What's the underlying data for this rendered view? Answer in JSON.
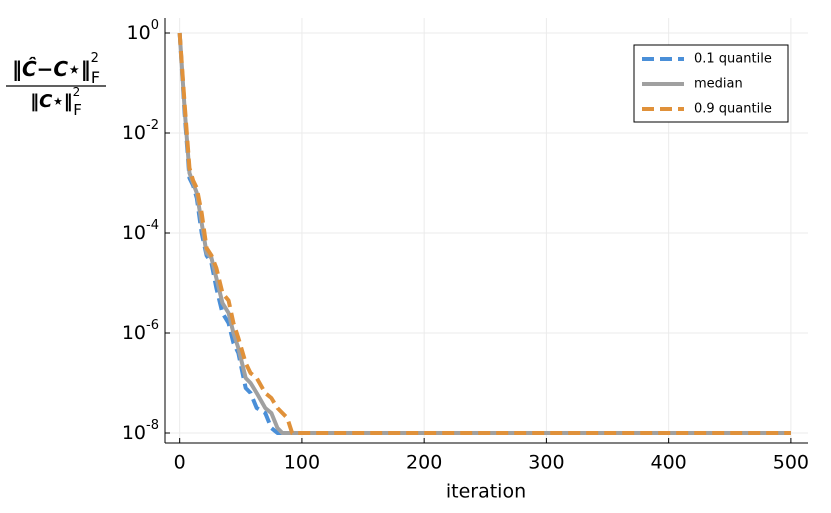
{
  "chart_data": {
    "type": "line",
    "x_label": "iteration",
    "y_label": {
      "numerator": "‖Ĉ−C⋆‖",
      "denominator": "‖C⋆‖",
      "superscript": "2",
      "subscript": "F"
    },
    "x": [
      0,
      4,
      8,
      11,
      14,
      18,
      22,
      26,
      30,
      35,
      40,
      44,
      48,
      54,
      58,
      63,
      70,
      75,
      80,
      84,
      88,
      92,
      500
    ],
    "series": [
      {
        "name": "0.1 quantile",
        "color": "#4a8fd8",
        "dash": true,
        "values": [
          1,
          0.0251,
          0.00126,
          0.000891,
          0.000501,
          0.0001,
          3.55e-05,
          2.51e-05,
          7.94e-06,
          2.51e-06,
          1.58e-06,
          6.31e-07,
          3.98e-07,
          7.94e-08,
          6.31e-08,
          3.16e-08,
          2.51e-08,
          1.26e-08,
          1e-08,
          1e-08,
          1e-08,
          1e-08,
          1e-08
        ]
      },
      {
        "name": "median",
        "color": "#a0a0a0",
        "dash": false,
        "values": [
          1,
          0.0316,
          0.00158,
          0.001,
          0.000631,
          0.000158,
          3.98e-05,
          3.16e-05,
          1.26e-05,
          3.98e-06,
          2.51e-06,
          1e-06,
          5.01e-07,
          1.26e-07,
          1e-07,
          6.31e-08,
          3.16e-08,
          2.51e-08,
          1.26e-08,
          1e-08,
          1e-08,
          1e-08,
          1e-08
        ]
      },
      {
        "name": "0.9 quantile",
        "color": "#e0913a",
        "dash": true,
        "values": [
          1,
          0.0398,
          0.002,
          0.00112,
          0.000794,
          0.000251,
          5.01e-05,
          3.55e-05,
          2e-05,
          6.31e-06,
          4.47e-06,
          1.58e-06,
          7.94e-07,
          2.51e-07,
          1.58e-07,
          1.26e-07,
          6.31e-08,
          5.01e-08,
          3.16e-08,
          2.51e-08,
          2e-08,
          1e-08,
          1e-08
        ]
      }
    ],
    "xlim": [
      -12,
      514
    ],
    "xticks": [
      0,
      100,
      200,
      300,
      400,
      500
    ],
    "ylim": [
      6.31e-09,
      1.995
    ],
    "y_log": true,
    "yticks": [
      {
        "value": 1,
        "label": "10",
        "exponent": "0"
      },
      {
        "value": 0.01,
        "label": "10",
        "exponent": "-2"
      },
      {
        "value": 0.0001,
        "label": "10",
        "exponent": "-4"
      },
      {
        "value": 1e-06,
        "label": "10",
        "exponent": "-6"
      },
      {
        "value": 1e-08,
        "label": "10",
        "exponent": "-8"
      }
    ],
    "grid": true,
    "legend": "top-right"
  }
}
